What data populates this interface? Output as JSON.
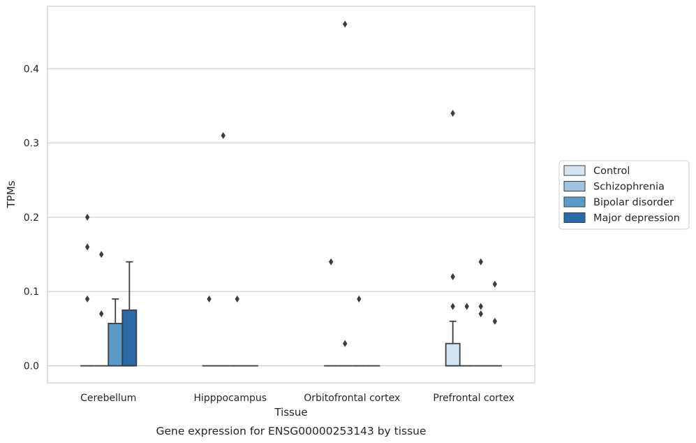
{
  "chart_data": {
    "type": "box",
    "caption": "Gene expression for ENSG00000253143 by tissue",
    "xlabel": "Tissue",
    "ylabel": "TPMs",
    "ylim": [
      -0.023,
      0.484
    ],
    "yticks": [
      0.0,
      0.1,
      0.2,
      0.3,
      0.4
    ],
    "ytick_labels": [
      "0.0",
      "0.1",
      "0.2",
      "0.3",
      "0.4"
    ],
    "grid": "horizontal",
    "legend_placement": "right",
    "categories": [
      "Cerebellum",
      "Hipppocampus",
      "Orbitofrontal cortex",
      "Prefrontal cortex"
    ],
    "series": [
      {
        "name": "Control",
        "color": "#d3e4f3",
        "boxes": [
          {
            "q1": 0,
            "median": 0,
            "q3": 0,
            "whisker_low": 0,
            "whisker_high": 0,
            "outliers": [
              0.09,
              0.16,
              0.2
            ]
          },
          {
            "q1": 0,
            "median": 0,
            "q3": 0,
            "whisker_low": 0,
            "whisker_high": 0,
            "outliers": [
              0.09
            ]
          },
          {
            "q1": 0,
            "median": 0,
            "q3": 0,
            "whisker_low": 0,
            "whisker_high": 0,
            "outliers": [
              0.14
            ]
          },
          {
            "q1": 0,
            "median": 0,
            "q3": 0.03,
            "whisker_low": 0,
            "whisker_high": 0.06,
            "outliers": [
              0.08,
              0.12,
              0.34
            ]
          }
        ]
      },
      {
        "name": "Schizophrenia",
        "color": "#a0c4df",
        "boxes": [
          {
            "q1": 0,
            "median": 0,
            "q3": 0,
            "whisker_low": 0,
            "whisker_high": 0,
            "outliers": [
              0.07,
              0.15
            ]
          },
          {
            "q1": 0,
            "median": 0,
            "q3": 0,
            "whisker_low": 0,
            "whisker_high": 0,
            "outliers": [
              0.31
            ]
          },
          {
            "q1": 0,
            "median": 0,
            "q3": 0,
            "whisker_low": 0,
            "whisker_high": 0,
            "outliers": [
              0.03,
              0.46
            ]
          },
          {
            "q1": 0,
            "median": 0,
            "q3": 0,
            "whisker_low": 0,
            "whisker_high": 0,
            "outliers": [
              0.08
            ]
          }
        ]
      },
      {
        "name": "Bipolar disorder",
        "color": "#5b9bc9",
        "boxes": [
          {
            "q1": 0,
            "median": 0,
            "q3": 0.057,
            "whisker_low": 0,
            "whisker_high": 0.09,
            "outliers": []
          },
          {
            "q1": 0,
            "median": 0,
            "q3": 0,
            "whisker_low": 0,
            "whisker_high": 0,
            "outliers": [
              0.09
            ]
          },
          {
            "q1": 0,
            "median": 0,
            "q3": 0,
            "whisker_low": 0,
            "whisker_high": 0,
            "outliers": [
              0.09
            ]
          },
          {
            "q1": 0,
            "median": 0,
            "q3": 0,
            "whisker_low": 0,
            "whisker_high": 0,
            "outliers": [
              0.07,
              0.08,
              0.14
            ]
          }
        ]
      },
      {
        "name": "Major depression",
        "color": "#2a6aa8",
        "boxes": [
          {
            "q1": 0,
            "median": 0,
            "q3": 0.075,
            "whisker_low": 0,
            "whisker_high": 0.14,
            "outliers": []
          },
          {
            "q1": 0,
            "median": 0,
            "q3": 0,
            "whisker_low": 0,
            "whisker_high": 0,
            "outliers": []
          },
          {
            "q1": 0,
            "median": 0,
            "q3": 0,
            "whisker_low": 0,
            "whisker_high": 0,
            "outliers": []
          },
          {
            "q1": 0,
            "median": 0,
            "q3": 0,
            "whisker_low": 0,
            "whisker_high": 0,
            "outliers": [
              0.06,
              0.11
            ]
          }
        ]
      }
    ]
  }
}
